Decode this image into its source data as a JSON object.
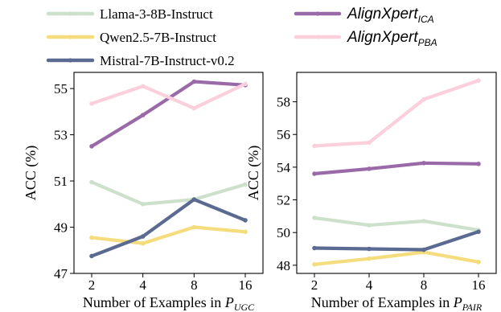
{
  "legend": [
    {
      "key": "llama",
      "label": "Llama-3-8B-Instruct",
      "color": "#cde0cc",
      "italic": false,
      "sub": ""
    },
    {
      "key": "qwen",
      "label": "Qwen2.5-7B-Instruct",
      "color": "#f5dc7c",
      "italic": false,
      "sub": ""
    },
    {
      "key": "mistral",
      "label": "Mistral-7B-Instruct-v0.2",
      "color": "#5a6a90",
      "italic": false,
      "sub": ""
    },
    {
      "key": "ica",
      "label": "AlignXpert",
      "color": "#9a6aa8",
      "italic": true,
      "sub": "ICA"
    },
    {
      "key": "pba",
      "label": "AlignXpert",
      "color": "#fccfdc",
      "italic": true,
      "sub": "PBA"
    }
  ],
  "chart_data": [
    {
      "type": "line",
      "x": [
        2,
        4,
        8,
        16
      ],
      "xticklabels": [
        "2",
        "4",
        "8",
        "16"
      ],
      "xlabel": "Number of Examples in ",
      "xlabel_math": "P",
      "xlabel_sub": "UGC",
      "ylabel": "ACC (%)",
      "ylim": [
        47,
        55.7
      ],
      "yticks": [
        47,
        49,
        51,
        53,
        55
      ],
      "series": [
        {
          "key": "llama",
          "values": [
            50.95,
            50.0,
            50.2,
            50.85
          ]
        },
        {
          "key": "qwen",
          "values": [
            48.55,
            48.3,
            49.0,
            48.8
          ]
        },
        {
          "key": "mistral",
          "values": [
            47.75,
            48.6,
            50.2,
            49.3
          ]
        },
        {
          "key": "ica",
          "values": [
            52.5,
            53.85,
            55.3,
            55.15
          ]
        },
        {
          "key": "pba",
          "values": [
            54.35,
            55.1,
            54.15,
            55.2
          ]
        }
      ]
    },
    {
      "type": "line",
      "x": [
        2,
        4,
        8,
        16
      ],
      "xticklabels": [
        "2",
        "4",
        "8",
        "16"
      ],
      "xlabel": "Number of Examples in ",
      "xlabel_math": "P",
      "xlabel_sub": "PAIR",
      "ylabel": "ACC (%)",
      "ylim": [
        47.5,
        59.8
      ],
      "yticks": [
        48,
        50,
        52,
        54,
        56,
        58
      ],
      "series": [
        {
          "key": "llama",
          "values": [
            50.9,
            50.45,
            50.7,
            50.15
          ]
        },
        {
          "key": "qwen",
          "values": [
            48.05,
            48.4,
            48.8,
            48.2
          ]
        },
        {
          "key": "mistral",
          "values": [
            49.05,
            49.0,
            48.95,
            50.05
          ]
        },
        {
          "key": "ica",
          "values": [
            53.6,
            53.9,
            54.25,
            54.2
          ]
        },
        {
          "key": "pba",
          "values": [
            55.3,
            55.5,
            58.15,
            59.3
          ]
        }
      ]
    }
  ]
}
